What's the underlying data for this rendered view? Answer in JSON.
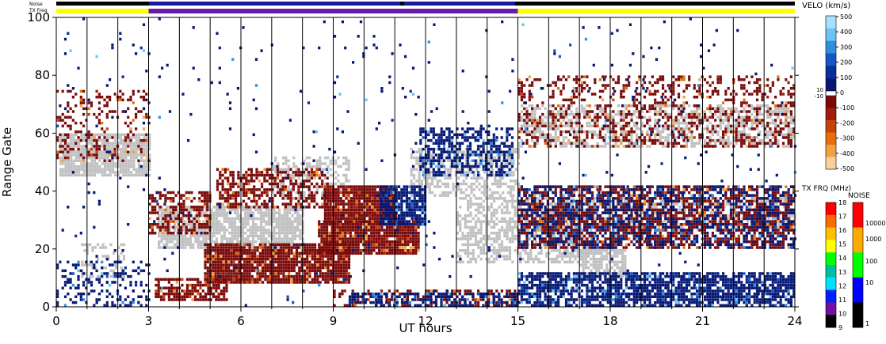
{
  "chart_data": {
    "type": "heatmap",
    "title": "",
    "xlabel": "UT hours",
    "ylabel": "Range Gate",
    "xlim": [
      0,
      24
    ],
    "ylim": [
      0,
      100
    ],
    "x_ticks": [
      "0",
      "3",
      "6",
      "9",
      "12",
      "15",
      "18",
      "21",
      "24"
    ],
    "y_ticks": [
      "0",
      "20",
      "40",
      "60",
      "80",
      "100"
    ],
    "x_minor_gridlines_every_hours": 1,
    "grid": true,
    "top_strips": {
      "noise_label": "Noise",
      "txfreq_label": "TX Freq",
      "txfreq_segments": [
        {
          "from": 0,
          "to": 3,
          "color": "#ffff00"
        },
        {
          "from": 3,
          "to": 15,
          "color": "#6a1aa8"
        },
        {
          "from": 15,
          "to": 24,
          "color": "#ffff00"
        }
      ]
    },
    "velocity_colorbar": {
      "label": "VELO (km/s)",
      "ticks": [
        "500",
        "400",
        "300",
        "200",
        "100",
        "0",
        "-100",
        "-200",
        "-300",
        "-400",
        "-500"
      ],
      "zero_band_labels": [
        "10",
        "-10"
      ],
      "positive_colors": [
        "#a8e0ff",
        "#6cc4f4",
        "#2f8fe0",
        "#1457c4",
        "#0a2f9a",
        "#061874"
      ],
      "negative_colors": [
        "#7a0a0a",
        "#a01c0c",
        "#c8400c",
        "#e4700c",
        "#f4a040",
        "#fcd09c"
      ],
      "ground_scatter_color": "#c0c0c0"
    },
    "txfreq_colorbar": {
      "label": "TX FRQ (MHz)",
      "ticks": [
        "18",
        "17",
        "16",
        "15",
        "14",
        "13",
        "12",
        "11",
        "10",
        "9"
      ],
      "colors": [
        "#ff0000",
        "#ff6a00",
        "#ffc000",
        "#ffff00",
        "#00ff00",
        "#00c0a0",
        "#00e0ff",
        "#0020ff",
        "#7010a0",
        "#000000"
      ]
    },
    "noise_colorbar": {
      "label": "NOISE",
      "ticks": [
        "10000",
        "1000",
        "100",
        "10",
        "1"
      ],
      "colors": [
        "#ff0000",
        "#ffaa00",
        "#00ff00",
        "#0000ff",
        "#000000"
      ]
    },
    "series": [
      {
        "kind": "ground",
        "x": [
          0.1,
          3.0
        ],
        "y": [
          45,
          60
        ],
        "density": 0.85
      },
      {
        "kind": "ground",
        "x": [
          0.8,
          2.2
        ],
        "y": [
          10,
          22
        ],
        "density": 0.35
      },
      {
        "kind": "ground",
        "x": [
          3.3,
          8.0
        ],
        "y": [
          20,
          35
        ],
        "density": 0.8
      },
      {
        "kind": "ground",
        "x": [
          7.0,
          9.5
        ],
        "y": [
          37,
          52
        ],
        "density": 0.45
      },
      {
        "kind": "ground",
        "x": [
          11.5,
          15.0
        ],
        "y": [
          38,
          55
        ],
        "density": 0.55
      },
      {
        "kind": "ground",
        "x": [
          13.0,
          17.5
        ],
        "y": [
          15,
          38
        ],
        "density": 0.55
      },
      {
        "kind": "ground",
        "x": [
          17.0,
          18.5
        ],
        "y": [
          10,
          20
        ],
        "density": 0.7
      },
      {
        "kind": "ground",
        "x": [
          15.0,
          24.0
        ],
        "y": [
          55,
          70
        ],
        "density": 0.5
      },
      {
        "kind": "ground",
        "x": [
          17.5,
          24.0
        ],
        "y": [
          26,
          38
        ],
        "density": 0.45
      },
      {
        "kind": "neg",
        "x": [
          0.0,
          3.0
        ],
        "y": [
          50,
          75
        ],
        "density": 0.25
      },
      {
        "kind": "neg",
        "x": [
          3.0,
          5.0
        ],
        "y": [
          25,
          40
        ],
        "density": 0.5
      },
      {
        "kind": "neg",
        "x": [
          5.2,
          8.8
        ],
        "y": [
          34,
          48
        ],
        "density": 0.55
      },
      {
        "kind": "neg",
        "x": [
          3.2,
          5.5
        ],
        "y": [
          2,
          10
        ],
        "density": 0.7
      },
      {
        "kind": "neg",
        "x": [
          4.8,
          9.5
        ],
        "y": [
          8,
          22
        ],
        "density": 0.9
      },
      {
        "kind": "neg",
        "x": [
          8.5,
          11.8
        ],
        "y": [
          18,
          30
        ],
        "density": 0.9
      },
      {
        "kind": "neg",
        "x": [
          8.7,
          11.0
        ],
        "y": [
          29,
          42
        ],
        "density": 0.95
      },
      {
        "kind": "neg",
        "x": [
          9.0,
          15.0
        ],
        "y": [
          0,
          6
        ],
        "density": 0.35
      },
      {
        "kind": "neg",
        "x": [
          15.0,
          24.0
        ],
        "y": [
          20,
          42
        ],
        "density": 0.55
      },
      {
        "kind": "neg",
        "x": [
          15.0,
          24.0
        ],
        "y": [
          55,
          80
        ],
        "density": 0.3
      },
      {
        "kind": "pos",
        "x": [
          0.0,
          3.0
        ],
        "y": [
          0,
          16
        ],
        "density": 0.25
      },
      {
        "kind": "pos",
        "x": [
          10.5,
          12.0
        ],
        "y": [
          28,
          42
        ],
        "density": 0.8
      },
      {
        "kind": "pos",
        "x": [
          11.8,
          14.8
        ],
        "y": [
          45,
          62
        ],
        "density": 0.55
      },
      {
        "kind": "pos",
        "x": [
          9.5,
          15.0
        ],
        "y": [
          0,
          5
        ],
        "density": 0.55
      },
      {
        "kind": "pos",
        "x": [
          15.0,
          24.0
        ],
        "y": [
          0,
          12
        ],
        "density": 0.75
      },
      {
        "kind": "pos",
        "x": [
          15.0,
          24.0
        ],
        "y": [
          20,
          42
        ],
        "density": 0.35
      },
      {
        "kind": "pos",
        "x": [
          0.0,
          24.0
        ],
        "y": [
          0,
          100
        ],
        "density": 0.015
      }
    ]
  }
}
